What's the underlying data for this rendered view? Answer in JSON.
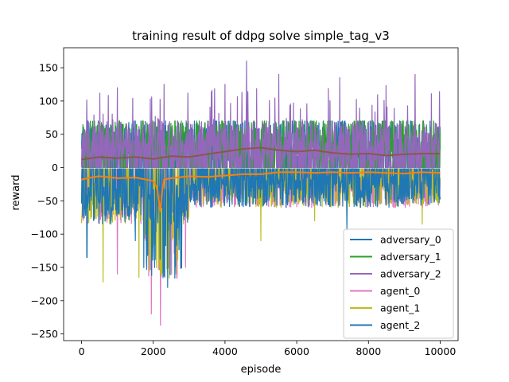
{
  "chart_data": {
    "type": "line",
    "title": "training result of ddpg solve simple_tag_v3",
    "xlabel": "episode",
    "ylabel": "reward",
    "xlim": [
      -500,
      10500
    ],
    "ylim": [
      -260,
      180
    ],
    "xticks": [
      0,
      2000,
      4000,
      6000,
      8000,
      10000
    ],
    "yticks": [
      -250,
      -200,
      -150,
      -100,
      -50,
      0,
      50,
      100,
      150
    ],
    "grid": false,
    "legend_position": "lower-right",
    "legend": [
      "adversary_0",
      "adversary_1",
      "adversary_2",
      "agent_0",
      "agent_1",
      "agent_2"
    ],
    "series": [
      {
        "name": "adversary_0",
        "color": "#1f77b4",
        "kind": "raw-noisy",
        "x_range": [
          0,
          10000
        ],
        "range_approx": [
          0,
          70
        ]
      },
      {
        "name": "adversary_1",
        "color": "#2ca02c",
        "kind": "raw-noisy",
        "x_range": [
          0,
          10000
        ],
        "range_approx": [
          0,
          70
        ]
      },
      {
        "name": "adversary_2",
        "color": "#9467bd",
        "kind": "raw-noisy",
        "x_range": [
          0,
          10000
        ],
        "range_approx": [
          0,
          160
        ],
        "peaks": [
          [
            1000,
            120
          ],
          [
            2300,
            125
          ],
          [
            4000,
            125
          ],
          [
            4600,
            160
          ],
          [
            5500,
            140
          ],
          [
            7200,
            135
          ],
          [
            9300,
            140
          ]
        ]
      },
      {
        "name": "agent_0",
        "color": "#e377c2",
        "kind": "raw-noisy",
        "x_range": [
          0,
          10000
        ],
        "range_approx": [
          -237,
          0
        ],
        "troughs": [
          [
            1950,
            -220
          ],
          [
            2200,
            -237
          ],
          [
            1000,
            -160
          ],
          [
            2900,
            -150
          ]
        ]
      },
      {
        "name": "agent_1",
        "color": "#bcbd22",
        "kind": "raw-noisy",
        "x_range": [
          0,
          10000
        ],
        "range_approx": [
          -172,
          0
        ],
        "troughs": [
          [
            600,
            -172
          ],
          [
            1600,
            -165
          ],
          [
            5000,
            -110
          ],
          [
            6500,
            -80
          ],
          [
            9500,
            -85
          ]
        ]
      },
      {
        "name": "agent_2",
        "color": "#1f77b4",
        "kind": "raw-noisy",
        "x_range": [
          0,
          10000
        ],
        "range_approx": [
          -180,
          0
        ],
        "troughs": [
          [
            150,
            -135
          ],
          [
            2000,
            -170
          ],
          [
            2400,
            -180
          ],
          [
            1500,
            -110
          ],
          [
            7400,
            -95
          ]
        ]
      },
      {
        "name": "adversary moving average",
        "color": "#8c564b",
        "kind": "smoothed",
        "in_legend": false,
        "x": [
          0,
          500,
          1000,
          1500,
          2000,
          2500,
          3000,
          3500,
          4000,
          4500,
          5000,
          5500,
          6000,
          6500,
          7000,
          7500,
          8000,
          8500,
          9000,
          9500,
          10000
        ],
        "y": [
          12,
          16,
          14,
          16,
          13,
          17,
          16,
          20,
          24,
          28,
          30,
          26,
          24,
          26,
          22,
          20,
          21,
          18,
          20,
          21,
          21
        ]
      },
      {
        "name": "agent moving average",
        "color": "#ff7f0e",
        "kind": "smoothed",
        "in_legend": false,
        "x": [
          0,
          250,
          500,
          1000,
          1500,
          2000,
          2100,
          2200,
          2250,
          2300,
          2500,
          3000,
          3500,
          4000,
          4500,
          5000,
          5500,
          6000,
          6500,
          7000,
          7500,
          8000,
          8500,
          9000,
          9500,
          10000
        ],
        "y": [
          -18,
          -15,
          -13,
          -16,
          -15,
          -20,
          -30,
          -65,
          -35,
          -18,
          -16,
          -13,
          -14,
          -12,
          -10,
          -10,
          -7,
          -7,
          -8,
          -7,
          -8,
          -7,
          -8,
          -9,
          -7,
          -8
        ]
      }
    ]
  }
}
